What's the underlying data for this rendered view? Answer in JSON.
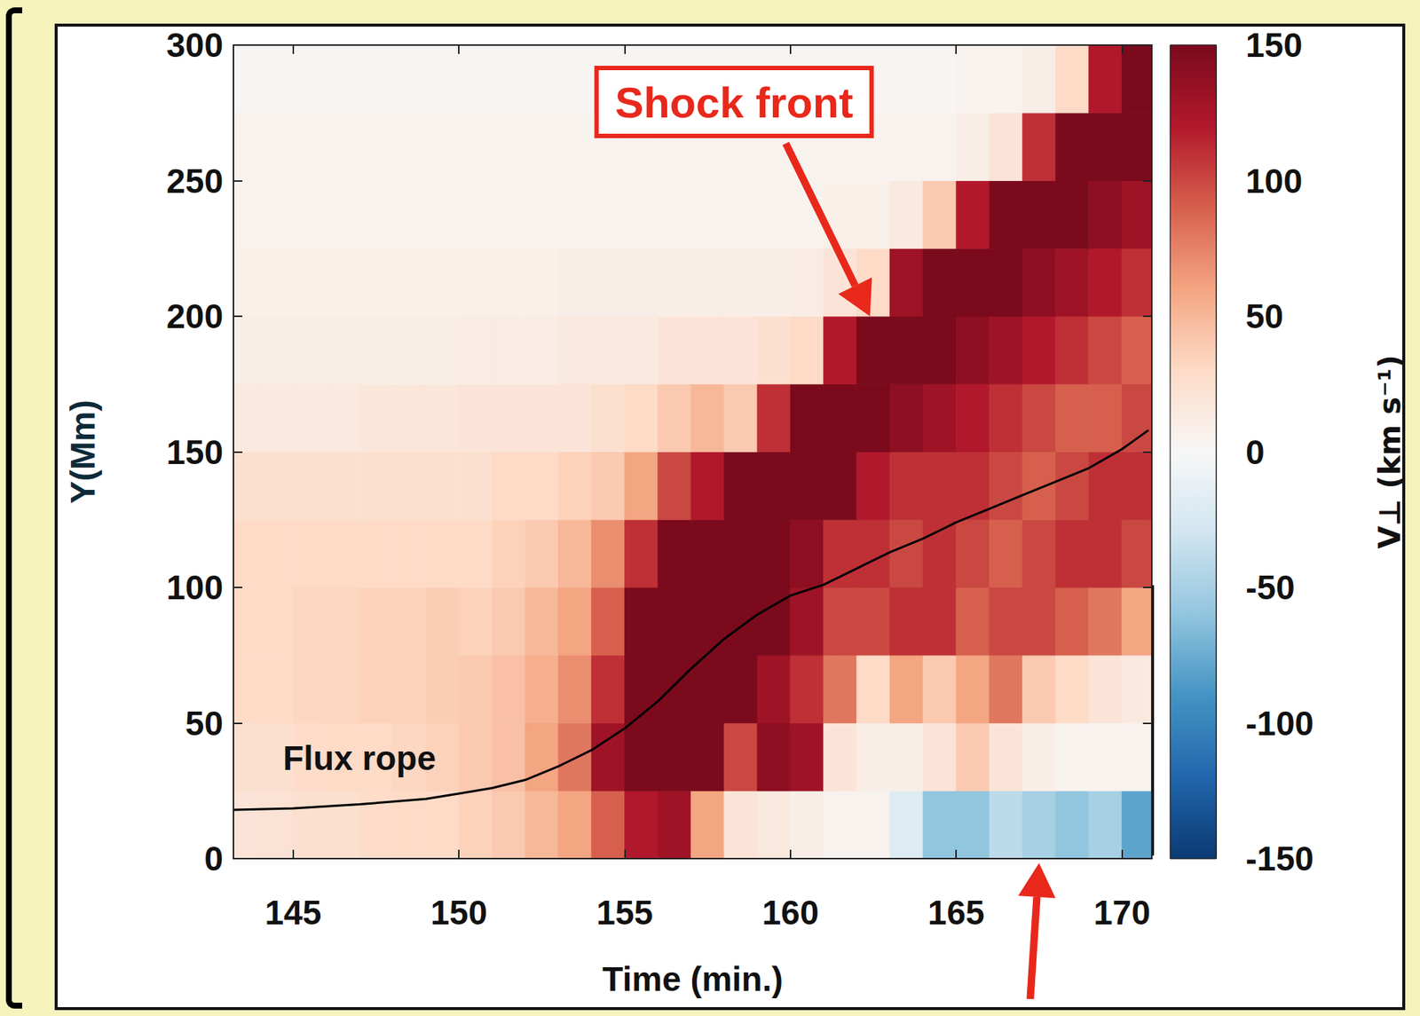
{
  "chart_data": {
    "type": "heatmap",
    "xlabel": "Time (min.)",
    "ylabel": "Y(Mm)",
    "xlim": [
      143.2,
      170.9
    ],
    "ylim": [
      0,
      300
    ],
    "xticks": [
      145,
      150,
      155,
      160,
      165,
      170
    ],
    "yticks": [
      0,
      50,
      100,
      150,
      200,
      250,
      300
    ],
    "heatmap": {
      "x_bins": [
        143,
        144,
        145,
        146,
        147,
        148,
        149,
        150,
        151,
        152,
        153,
        154,
        155,
        156,
        157,
        158,
        159,
        160,
        161,
        162,
        163,
        164,
        165,
        166,
        167,
        168,
        169,
        170,
        171
      ],
      "y_bins": [
        0,
        25,
        50,
        75,
        100,
        125,
        150,
        175,
        200,
        225,
        250,
        275,
        300
      ],
      "cells": [
        [
          20,
          22,
          25,
          25,
          28,
          30,
          30,
          35,
          40,
          50,
          60,
          90,
          120,
          130,
          60,
          20,
          15,
          10,
          5,
          5,
          -20,
          -60,
          -60,
          -40,
          -50,
          -60,
          -50,
          -80
        ],
        [
          25,
          25,
          28,
          30,
          30,
          32,
          35,
          40,
          45,
          60,
          80,
          130,
          150,
          150,
          150,
          100,
          140,
          130,
          20,
          10,
          10,
          20,
          40,
          20,
          10,
          5,
          5,
          5
        ],
        [
          30,
          30,
          32,
          32,
          35,
          35,
          38,
          40,
          45,
          55,
          70,
          110,
          150,
          150,
          150,
          150,
          130,
          110,
          80,
          30,
          60,
          40,
          60,
          80,
          40,
          30,
          20,
          15
        ],
        [
          30,
          30,
          32,
          32,
          35,
          35,
          38,
          35,
          40,
          50,
          60,
          90,
          150,
          150,
          150,
          150,
          150,
          130,
          100,
          100,
          110,
          110,
          90,
          100,
          100,
          90,
          80,
          60
        ],
        [
          30,
          30,
          30,
          30,
          30,
          30,
          30,
          30,
          35,
          40,
          50,
          70,
          110,
          150,
          150,
          150,
          150,
          140,
          110,
          110,
          100,
          110,
          100,
          90,
          100,
          110,
          110,
          100
        ],
        [
          25,
          25,
          25,
          25,
          25,
          25,
          25,
          25,
          30,
          30,
          35,
          40,
          60,
          100,
          120,
          150,
          150,
          150,
          150,
          120,
          110,
          110,
          110,
          100,
          90,
          100,
          110,
          110
        ],
        [
          15,
          15,
          15,
          15,
          18,
          18,
          18,
          20,
          20,
          20,
          20,
          25,
          30,
          40,
          50,
          40,
          110,
          150,
          150,
          150,
          140,
          130,
          120,
          110,
          100,
          90,
          90,
          100
        ],
        [
          10,
          10,
          10,
          10,
          10,
          10,
          10,
          12,
          12,
          12,
          15,
          15,
          15,
          20,
          20,
          20,
          25,
          30,
          120,
          150,
          150,
          150,
          140,
          130,
          120,
          110,
          100,
          90
        ],
        [
          8,
          8,
          8,
          8,
          8,
          8,
          8,
          8,
          8,
          8,
          10,
          10,
          10,
          10,
          10,
          10,
          10,
          12,
          20,
          30,
          130,
          150,
          150,
          150,
          140,
          130,
          120,
          110
        ],
        [
          5,
          5,
          5,
          5,
          5,
          5,
          5,
          5,
          5,
          5,
          5,
          5,
          5,
          5,
          5,
          5,
          5,
          5,
          8,
          8,
          15,
          40,
          120,
          150,
          150,
          150,
          140,
          130
        ],
        [
          5,
          5,
          5,
          5,
          5,
          5,
          5,
          5,
          5,
          5,
          5,
          5,
          5,
          5,
          5,
          5,
          5,
          5,
          5,
          5,
          5,
          5,
          10,
          20,
          110,
          150,
          150,
          150
        ],
        [
          3,
          3,
          3,
          3,
          3,
          3,
          3,
          3,
          3,
          3,
          3,
          3,
          3,
          3,
          3,
          3,
          3,
          3,
          3,
          3,
          3,
          3,
          5,
          5,
          10,
          30,
          120,
          150
        ]
      ]
    },
    "colorbar": {
      "label": "V⊥ (km s⁻¹)",
      "range": [
        -150,
        150
      ],
      "ticks": [
        -150,
        -100,
        -50,
        0,
        50,
        100,
        150
      ]
    },
    "series": [
      {
        "type": "line",
        "color": "#000000",
        "x": [
          143.2,
          145,
          147,
          149,
          150,
          151,
          152,
          153,
          154,
          155,
          156,
          157,
          158,
          159,
          160,
          161,
          162,
          163,
          164,
          165,
          166,
          167,
          168,
          169,
          170,
          170.8
        ],
        "values": [
          18,
          18.5,
          20,
          22,
          24,
          26,
          29,
          34,
          40,
          48,
          58,
          70,
          81,
          90,
          97,
          101,
          107,
          113,
          118,
          124,
          129,
          134,
          139,
          144,
          151,
          158
        ]
      }
    ],
    "annotations": [
      {
        "text": "Shock front",
        "x": 158.3,
        "y": 279,
        "arrow_to": [
          162.4,
          200
        ]
      },
      {
        "text": "Flux rope",
        "x": 147,
        "y": 37
      }
    ],
    "box": {
      "x": [
        161.4,
        170.9
      ],
      "y": [
        2,
        100
      ]
    },
    "pointer": {
      "x": 167.5,
      "y": 0
    }
  }
}
